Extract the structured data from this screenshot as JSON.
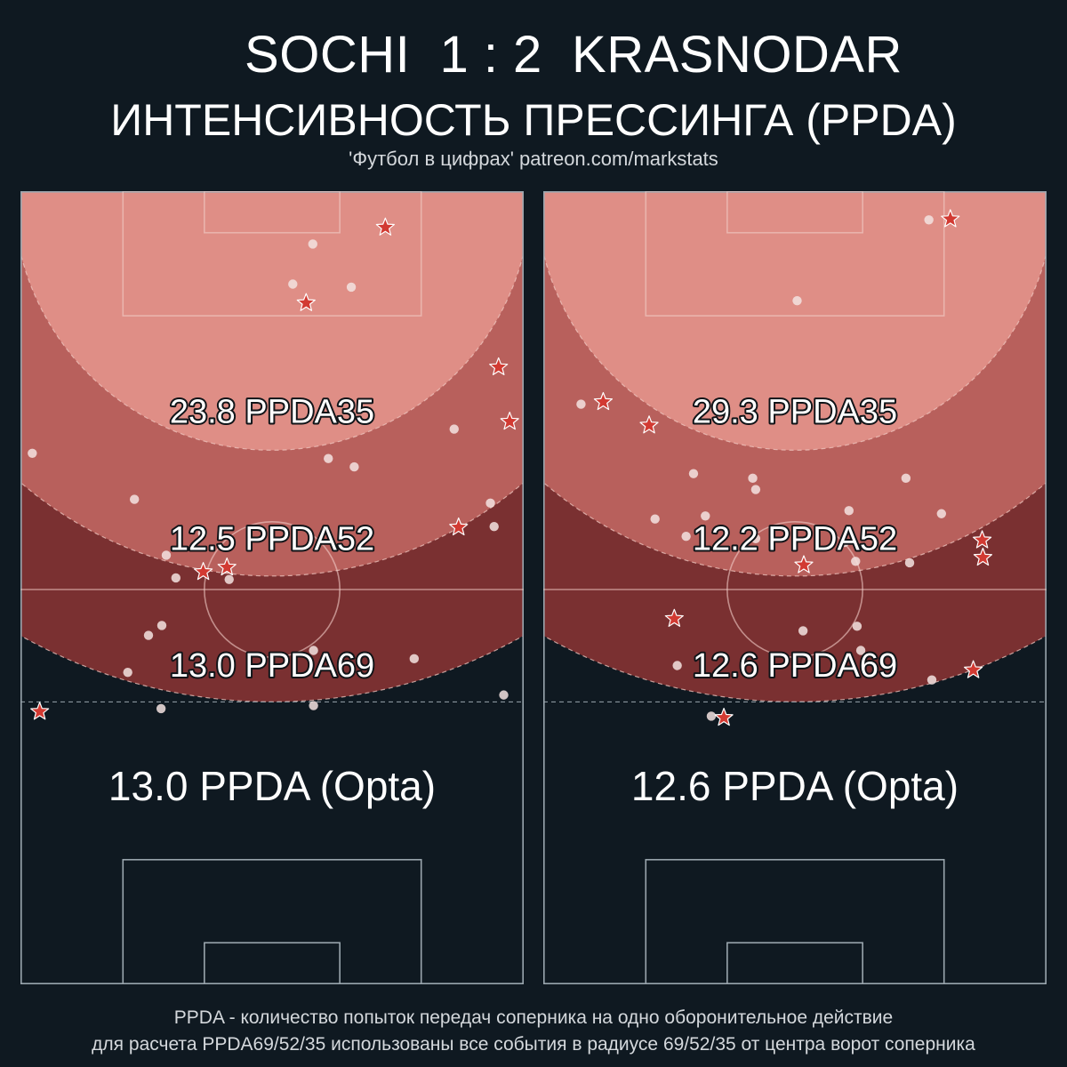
{
  "header": {
    "match_title": "SOCHI  1 : 2  KRASNODAR",
    "subtitle": "ИНТЕНСИВНОСТЬ ПРЕССИНГА (PPDA)",
    "source_credit": "'Футбол в цифрах' patreon.com/markstats"
  },
  "footnote": {
    "line1": "PPDA - количество попыток передач соперника на одно оборонительное действие",
    "line2": "для расчета PPDA69/52/35 использованы все события в радиусе 69/52/35 от центра ворот соперника"
  },
  "colors": {
    "background": "#0f1921",
    "zone_35": "#df8e86",
    "zone_52": "#b8605c",
    "zone_69": "#7a3031",
    "star_fill": "#d23a32",
    "dot_fill": "#f3e3e1",
    "pitch_line": "#9aa6ae"
  },
  "chart_data": [
    {
      "type": "scatter",
      "team": "Sochi",
      "description_units": "field coordinates: x across pitch 0-68, y from opponent goal line 0-105",
      "metrics": [
        {
          "label": "23.8 PPDA35",
          "radius": 35
        },
        {
          "label": "12.5 PPDA52",
          "radius": 52
        },
        {
          "label": "13.0 PPDA69",
          "radius": 69
        }
      ],
      "opta_label": "13.0 PPDA (Opta)",
      "ppda": {
        "ppda35": 23.8,
        "ppda52": 12.5,
        "ppda69": 13.0,
        "opta": 13.0
      },
      "dots": [
        [
          39.5,
          7.0
        ],
        [
          36.8,
          12.3
        ],
        [
          44.7,
          12.7
        ],
        [
          58.6,
          31.5
        ],
        [
          1.6,
          34.7
        ],
        [
          41.6,
          35.4
        ],
        [
          45.1,
          36.5
        ],
        [
          15.4,
          40.8
        ],
        [
          63.5,
          41.3
        ],
        [
          64.0,
          44.4
        ],
        [
          24.6,
          45.3
        ],
        [
          19.7,
          48.2
        ],
        [
          21.0,
          51.2
        ],
        [
          28.2,
          51.4
        ],
        [
          19.1,
          57.5
        ],
        [
          17.3,
          58.8
        ],
        [
          39.6,
          60.8
        ],
        [
          53.2,
          61.9
        ],
        [
          14.5,
          63.7
        ],
        [
          65.3,
          66.7
        ],
        [
          19.0,
          68.5
        ],
        [
          39.6,
          68.1
        ]
      ],
      "stars": [
        [
          49.3,
          4.8
        ],
        [
          38.6,
          14.8
        ],
        [
          64.6,
          23.3
        ],
        [
          66.1,
          30.5
        ],
        [
          59.2,
          44.5
        ],
        [
          24.7,
          50.4
        ],
        [
          27.9,
          49.8
        ],
        [
          2.6,
          68.9
        ]
      ]
    },
    {
      "type": "scatter",
      "team": "Krasnodar",
      "description_units": "field coordinates: x across pitch 0-68, y from opponent goal line 0-105",
      "metrics": [
        {
          "label": "29.3 PPDA35",
          "radius": 35
        },
        {
          "label": "12.2 PPDA52",
          "radius": 52
        },
        {
          "label": "12.6 PPDA69",
          "radius": 69
        }
      ],
      "opta_label": "12.6 PPDA (Opta)",
      "ppda": {
        "ppda35": 29.3,
        "ppda52": 12.2,
        "ppda69": 12.6,
        "opta": 12.6
      },
      "dots": [
        [
          52.1,
          3.8
        ],
        [
          34.3,
          14.5
        ],
        [
          5.1,
          28.2
        ],
        [
          20.3,
          37.4
        ],
        [
          28.3,
          38.0
        ],
        [
          49.0,
          38.0
        ],
        [
          28.7,
          39.5
        ],
        [
          41.3,
          42.3
        ],
        [
          53.8,
          42.7
        ],
        [
          15.1,
          43.4
        ],
        [
          21.9,
          43.0
        ],
        [
          19.3,
          45.7
        ],
        [
          28.7,
          46.0
        ],
        [
          40.7,
          46.5
        ],
        [
          42.2,
          49.0
        ],
        [
          49.5,
          49.2
        ],
        [
          35.1,
          58.2
        ],
        [
          42.4,
          57.6
        ],
        [
          42.9,
          60.8
        ],
        [
          18.1,
          62.8
        ],
        [
          52.5,
          64.7
        ],
        [
          22.7,
          69.5
        ]
      ],
      "stars": [
        [
          55.0,
          3.7
        ],
        [
          8.1,
          27.9
        ],
        [
          14.3,
          31.0
        ],
        [
          35.2,
          49.5
        ],
        [
          59.3,
          46.2
        ],
        [
          59.4,
          48.5
        ],
        [
          17.7,
          56.6
        ],
        [
          58.1,
          63.4
        ],
        [
          24.4,
          69.7
        ]
      ]
    }
  ]
}
